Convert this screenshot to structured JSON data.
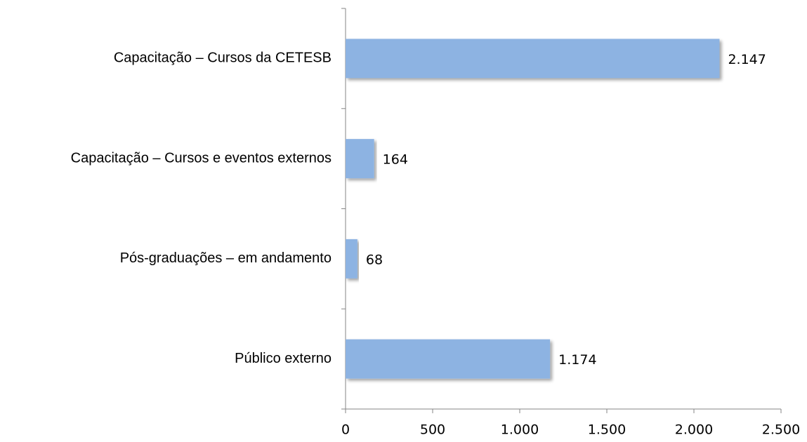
{
  "chart_data": {
    "type": "bar",
    "orientation": "horizontal",
    "categories": [
      "Capacitação – Cursos da CETESB",
      "Capacitação – Cursos e eventos externos",
      "Pós-graduações – em andamento",
      "Público externo"
    ],
    "values": [
      2147,
      164,
      68,
      1174
    ],
    "value_labels": [
      "2.147",
      "164",
      "68",
      "1.174"
    ],
    "color": "#8db3e2",
    "xlim": [
      0,
      2500
    ],
    "xticks": [
      0,
      500,
      {
        "value": 1000,
        "label": "1.000"
      },
      {
        "value": 1500,
        "label": "1.500"
      },
      {
        "value": 2000,
        "label": "2.000"
      },
      {
        "value": 2500,
        "label": "2.500"
      }
    ]
  }
}
